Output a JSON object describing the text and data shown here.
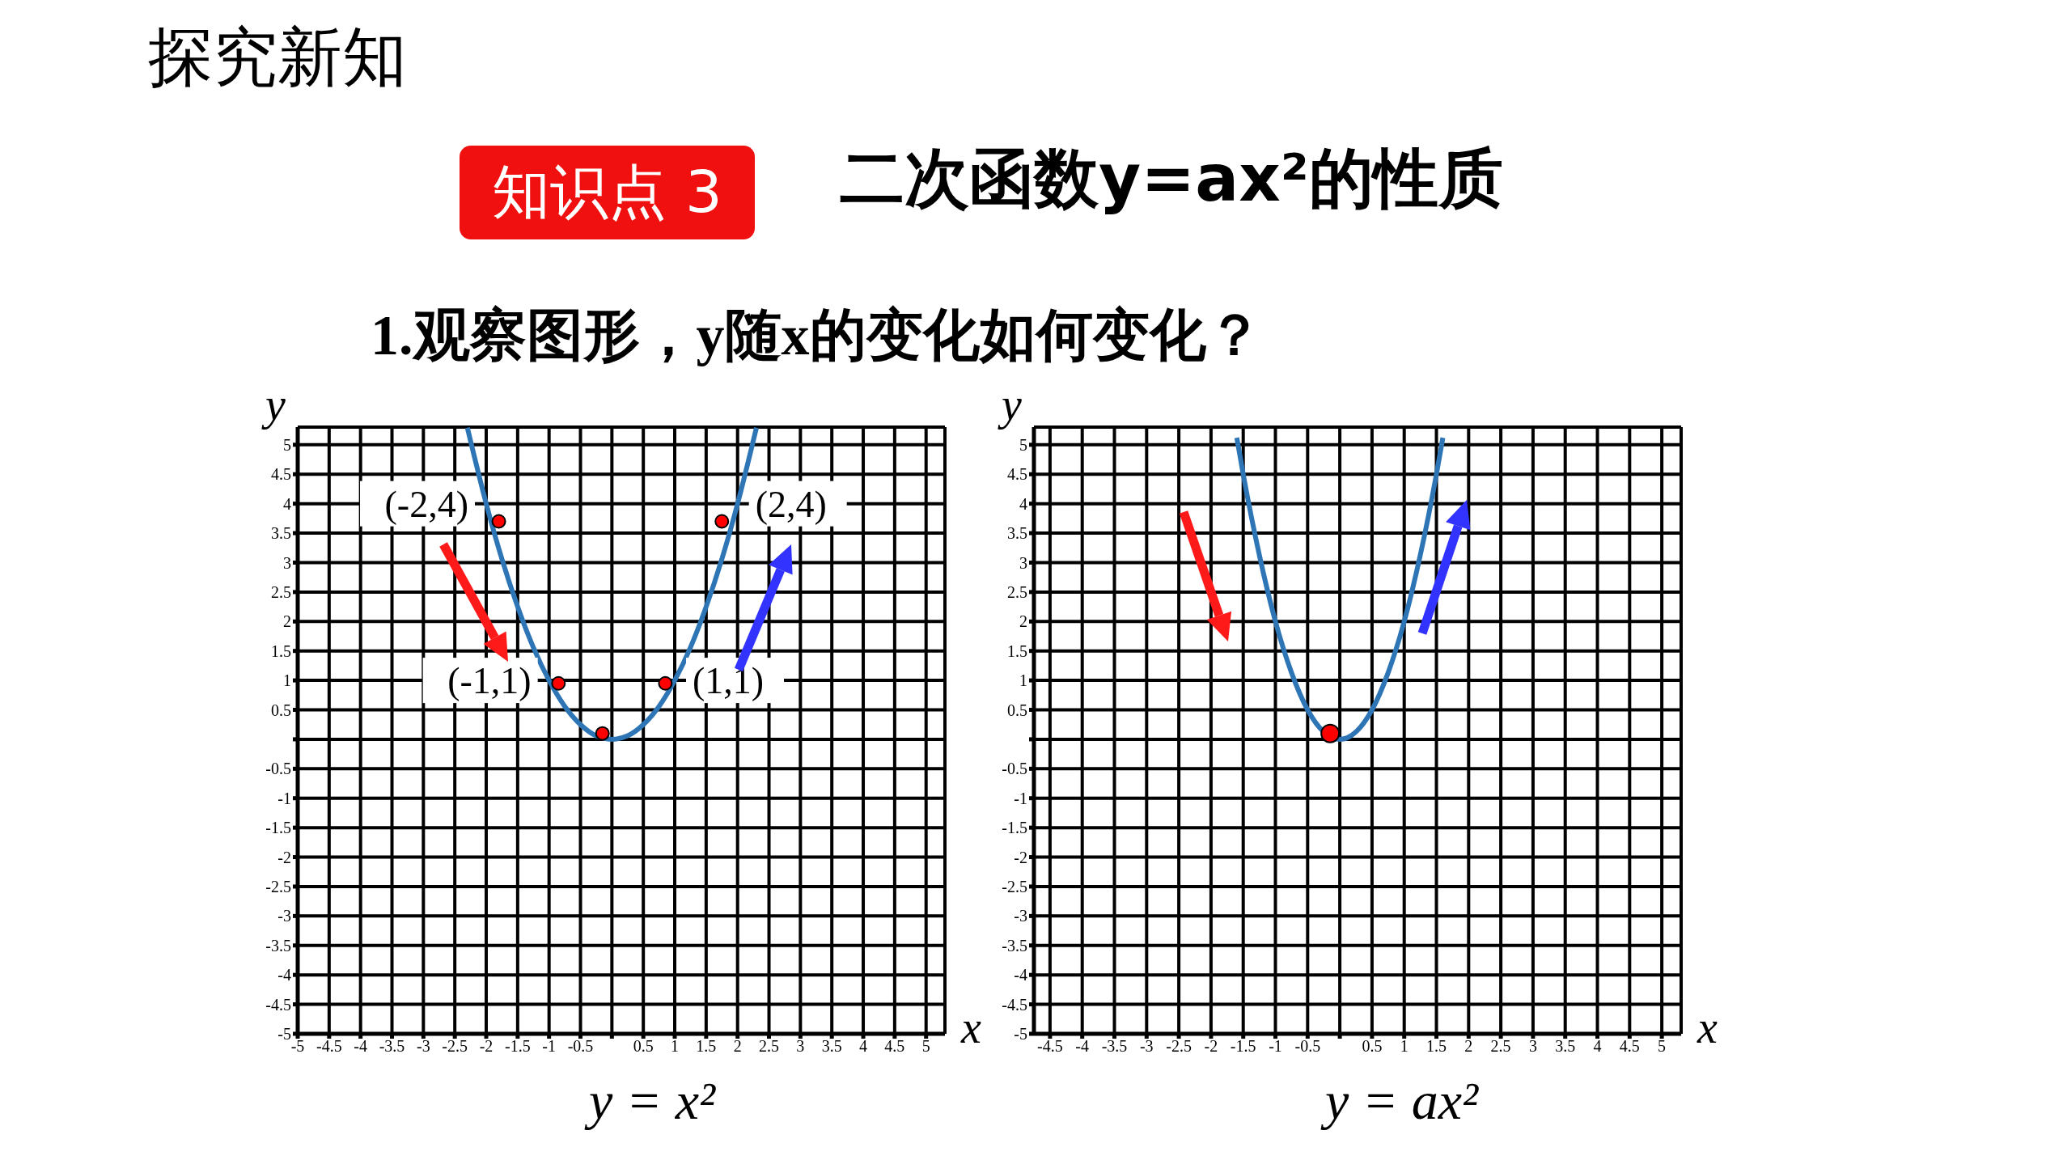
{
  "chart_data": [
    {
      "type": "line",
      "subtitle": "1.观察图形，y随x的变化如何变化？",
      "xlabel": "x",
      "ylabel": "y",
      "grid": true,
      "annotations": [
        "探究新知",
        "知识点 3",
        {
          "text": "(-2,4)",
          "x": -2,
          "y": 4
        },
        {
          "text": "(-1,1)",
          "x": -1,
          "y": 1
        },
        {
          "text": "(1,1)",
          "x": 1,
          "y": 1
        },
        {
          "text": "(2,4)",
          "x": 2,
          "y": 4
        },
        "y = x²"
      ],
      "xlim": [
        -5,
        5.3
      ],
      "ylim": [
        -5,
        5.3
      ],
      "xticks": [
        -5,
        -4.5,
        -4,
        -3.5,
        -3,
        -2.5,
        -2,
        -1.5,
        -1,
        -0.5,
        {
          "value": 0,
          "label": null
        },
        0.5,
        1,
        1.5,
        2,
        2.5,
        3,
        3.5,
        4,
        4.5,
        5
      ],
      "yticks": [
        -5,
        -4.5,
        -4,
        -3.5,
        -3,
        -2.5,
        -2,
        -1.5,
        -1,
        -0.5,
        {
          "value": 0,
          "label": null
        },
        0.5,
        1,
        1.5,
        2,
        2.5,
        3,
        3.5,
        4,
        4.5,
        5
      ],
      "series": [
        {
          "type": "line",
          "marker": "none",
          "color": "#2e75b6",
          "x": [
            -2.3,
            -2,
            -1.75,
            -1.5,
            -1.25,
            -1,
            -0.75,
            -0.5,
            -0.25,
            0,
            0.25,
            0.5,
            0.75,
            1,
            1.25,
            1.5,
            1.75,
            2,
            2.3
          ],
          "values": [
            5.29,
            4,
            3.06,
            2.25,
            1.56,
            1,
            0.56,
            0.25,
            0.06,
            0,
            0.06,
            0.25,
            0.56,
            1,
            1.56,
            2.25,
            3.06,
            4,
            5.29
          ]
        },
        {
          "type": "scatter",
          "marker": "circle",
          "color": "#ff0000",
          "x": [
            -1.8,
            -0.85,
            -0.15,
            0.85,
            1.75
          ],
          "values": [
            3.7,
            0.95,
            0.1,
            0.95,
            3.7
          ]
        }
      ]
    },
    {
      "type": "line",
      "title": "二次函数y=ax²的性质",
      "xlabel": "x",
      "ylabel": "y",
      "grid": true,
      "annotations": [
        "y = ax²"
      ],
      "xlim": [
        -4.75,
        5.3
      ],
      "ylim": [
        -5,
        5.3
      ],
      "xticks": [
        -4.5,
        -4,
        -3.5,
        -3,
        -2.5,
        -2,
        -1.5,
        -1,
        -0.5,
        {
          "value": 0,
          "label": null
        },
        0.5,
        1,
        1.5,
        2,
        2.5,
        3,
        3.5,
        4,
        4.5,
        5
      ],
      "yticks": [
        -5,
        -4.5,
        -4,
        -3.5,
        -3,
        -2.5,
        -2,
        -1.5,
        -1,
        -0.5,
        {
          "value": 0,
          "label": null
        },
        0.5,
        1,
        1.5,
        2,
        2.5,
        3,
        3.5,
        4,
        4.5,
        5
      ],
      "series": [
        {
          "type": "line",
          "marker": "none",
          "color": "#2e75b6",
          "x": [
            -1.6,
            -1.5,
            -1.25,
            -1,
            -0.75,
            -0.5,
            0,
            0.5,
            0.75,
            1,
            1.25,
            1.5,
            1.6
          ],
          "values": [
            5.12,
            4.5,
            3.13,
            2,
            1.13,
            0.5,
            0,
            0.5,
            1.13,
            2,
            3.13,
            4.5,
            5.12
          ]
        },
        {
          "type": "scatter",
          "marker": "circle",
          "color": "#ff0000",
          "x": [
            -0.15
          ],
          "values": [
            0.1
          ]
        }
      ]
    }
  ]
}
